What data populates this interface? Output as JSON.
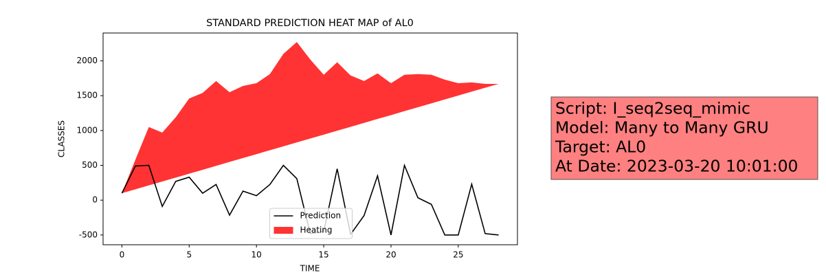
{
  "chart_data": {
    "type": "line_area",
    "title": "STANDARD PREDICTION HEAT MAP of AL0",
    "xlabel": "TIME",
    "ylabel": "CLASSES",
    "x": [
      0,
      1,
      2,
      3,
      4,
      5,
      6,
      7,
      8,
      9,
      10,
      11,
      12,
      13,
      14,
      15,
      16,
      17,
      18,
      19,
      20,
      21,
      22,
      23,
      24,
      25,
      26,
      27,
      28
    ],
    "series": [
      {
        "name": "Prediction",
        "kind": "line",
        "color": "#000000",
        "values": [
          100,
          490,
          500,
          -90,
          270,
          330,
          100,
          225,
          -215,
          130,
          65,
          225,
          500,
          310,
          -480,
          -450,
          450,
          -490,
          -220,
          350,
          -500,
          500,
          35,
          -60,
          -500,
          -500,
          230,
          -480,
          -500
        ]
      },
      {
        "name": "Heating",
        "kind": "area",
        "color": "#ff3333",
        "values": [
          100,
          580,
          1050,
          970,
          1190,
          1460,
          1540,
          1710,
          1550,
          1640,
          1680,
          1810,
          2100,
          2270,
          2020,
          1800,
          1980,
          1790,
          1710,
          1820,
          1680,
          1800,
          1810,
          1800,
          1730,
          1680,
          1690,
          1670,
          1670
        ],
        "lower": [
          100,
          156,
          212,
          268,
          324,
          380,
          436,
          493,
          549,
          605,
          661,
          717,
          773,
          829,
          885,
          941,
          997,
          1053,
          1109,
          1166,
          1221,
          1278,
          1334,
          1390,
          1446,
          1502,
          1558,
          1614,
          1670
        ]
      }
    ],
    "xlim": [
      -1.4,
      29.4
    ],
    "ylim": [
      -640,
      2400
    ],
    "xticks": [
      0,
      5,
      10,
      15,
      20,
      25
    ],
    "yticks": [
      -500,
      0,
      500,
      1000,
      1500,
      2000
    ],
    "legend": "lower center",
    "annotation": {
      "lines": [
        "Script: I_seq2seq_mimic",
        "Model: Many to Many GRU",
        "Target: AL0",
        "At Date: 2023-03-20 10:01:00"
      ],
      "color": "#ff8080"
    }
  }
}
